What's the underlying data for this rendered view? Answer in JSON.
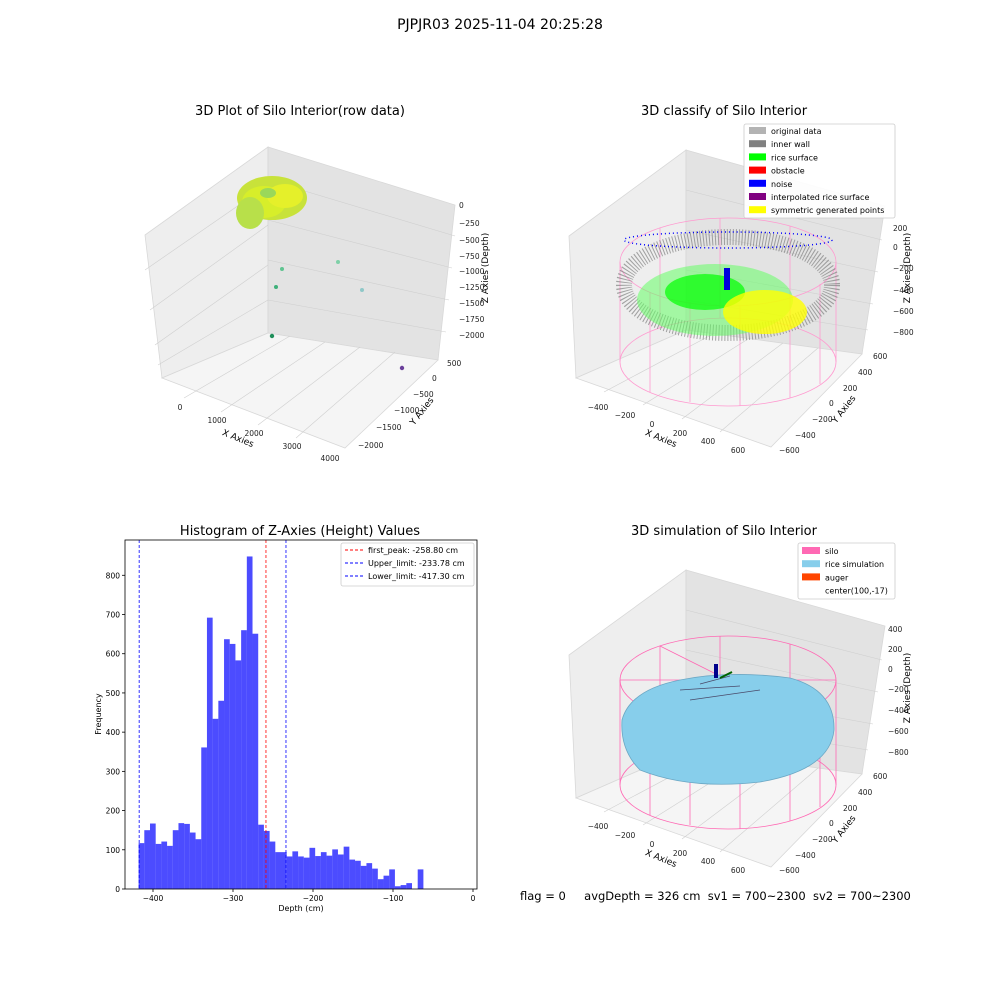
{
  "figure": {
    "suptitle": "PJPJR03 2025-11-04 20:25:28",
    "bottom_info": {
      "flag": "flag = 0",
      "avg_depth": "avgDepth = 326 cm",
      "sv1": "sv1 = 700~2300",
      "sv2": "sv2 = 700~2300"
    }
  },
  "panels": {
    "raw": {
      "title": "3D Plot of Silo Interior(row data)",
      "xlabel": "X Axies",
      "ylabel": "Y Axies",
      "zlabel": "Z Axies (Depth)",
      "xticks": [
        "0",
        "1000",
        "2000",
        "3000",
        "4000"
      ],
      "yticks": [
        "500",
        "0",
        "−500",
        "−1000",
        "−1500",
        "−2000"
      ],
      "zticks": [
        "0",
        "−250",
        "−500",
        "−750",
        "−1000",
        "−1250",
        "−1500",
        "−1750",
        "−2000"
      ]
    },
    "classify": {
      "title": "3D classify of Silo Interior",
      "xlabel": "X Axies",
      "ylabel": "Y Axies",
      "zlabel": "Z Axies (Depth)",
      "xticks": [
        "−400",
        "−200",
        "0",
        "200",
        "400",
        "600"
      ],
      "yticks": [
        "600",
        "400",
        "200",
        "0",
        "−200",
        "−400",
        "−600"
      ],
      "zticks": [
        "200",
        "0",
        "−200",
        "−400",
        "−600",
        "−800"
      ],
      "legend": [
        {
          "label": "original data",
          "color": "#b3b3b3"
        },
        {
          "label": "inner wall",
          "color": "#808080"
        },
        {
          "label": "rice surface",
          "color": "#00ff00"
        },
        {
          "label": "obstacle",
          "color": "#ff0000"
        },
        {
          "label": "noise",
          "color": "#0000ff"
        },
        {
          "label": "interpolated rice surface",
          "color": "#800080"
        },
        {
          "label": "symmetric generated points",
          "color": "#ffff00"
        }
      ]
    },
    "simulation": {
      "title": "3D simulation of Silo Interior",
      "xlabel": "X Axies",
      "ylabel": "Y Axies",
      "zlabel": "Z Axies (Depth)",
      "xticks": [
        "−400",
        "−200",
        "0",
        "200",
        "400",
        "600"
      ],
      "yticks": [
        "600",
        "400",
        "200",
        "0",
        "−200",
        "−400",
        "−600"
      ],
      "zticks": [
        "400",
        "200",
        "0",
        "−200",
        "−400",
        "−600",
        "−800"
      ],
      "legend": [
        {
          "label": "silo",
          "color": "#ff69b4"
        },
        {
          "label": "rice simulation",
          "color": "#87ceeb"
        },
        {
          "label": "auger",
          "color": "#ff4500"
        },
        {
          "label": "center(100,-17)",
          "color": ""
        }
      ]
    }
  },
  "chart_data": {
    "type": "bar",
    "title": "Histogram of Z-Axies (Height) Values",
    "xlabel": "Depth (cm)",
    "ylabel": "Frequency",
    "xlim": [
      -435,
      5
    ],
    "ylim": [
      0,
      890
    ],
    "bin_start": -418,
    "bin_width": 7.12,
    "values": [
      117,
      150,
      167,
      115,
      121,
      110,
      150,
      168,
      166,
      144,
      127,
      361,
      692,
      434,
      480,
      637,
      625,
      583,
      660,
      848,
      651,
      164,
      148,
      121,
      94,
      94,
      83,
      96,
      83,
      80,
      105,
      84,
      94,
      85,
      101,
      88,
      108,
      75,
      72,
      59,
      66,
      52,
      25,
      34,
      50,
      7,
      10,
      15,
      0,
      50
    ],
    "bar_color": "#0000ff",
    "xticks": [
      -400,
      -300,
      -200,
      -100,
      0
    ],
    "xtick_labels": [
      "−400",
      "−300",
      "−200",
      "−100",
      "0"
    ],
    "yticks": [
      0,
      100,
      200,
      300,
      400,
      500,
      600,
      700,
      800
    ],
    "vlines": [
      {
        "x": -258.8,
        "color": "#ff0000",
        "label": "first_peak: -258.80 cm"
      },
      {
        "x": -233.78,
        "color": "#0000ff",
        "label": "Upper_limit: -233.78 cm"
      },
      {
        "x": -417.3,
        "color": "#0000ff",
        "label": "Lower_limit: -417.30 cm"
      }
    ],
    "legend_position": "upper right",
    "grid": false
  }
}
